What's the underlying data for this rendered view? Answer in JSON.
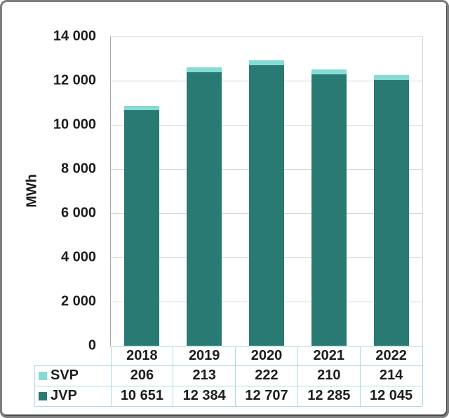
{
  "chart_data": {
    "type": "bar",
    "stacked": true,
    "title": "",
    "xlabel": "",
    "ylabel": "MWh",
    "categories": [
      "2018",
      "2019",
      "2020",
      "2021",
      "2022"
    ],
    "series": [
      {
        "name": "SVP",
        "color": "#86dbd5",
        "values": [
          206,
          213,
          222,
          210,
          214
        ]
      },
      {
        "name": "JVP",
        "color": "#2a7a74",
        "values": [
          10651,
          12384,
          12707,
          12285,
          12045
        ]
      }
    ],
    "ylim": [
      0,
      14000
    ],
    "ytick_step": 2000,
    "ytick_labels": [
      "0",
      "2 000",
      "4 000",
      "6 000",
      "8 000",
      "10 000",
      "12 000",
      "14 000"
    ],
    "grid": true,
    "legend_position": "table-left",
    "number_format": "space-thousands"
  },
  "colors": {
    "background": "#ffffff",
    "bar_svp": "#86dbd5",
    "bar_jvp": "#2a7a74",
    "gridline": "#d6d6d6",
    "axis": "#a8a8a8",
    "table_border": "#aadde2",
    "text": "#1d1d1d",
    "frame_border": "#7e7e7e"
  }
}
